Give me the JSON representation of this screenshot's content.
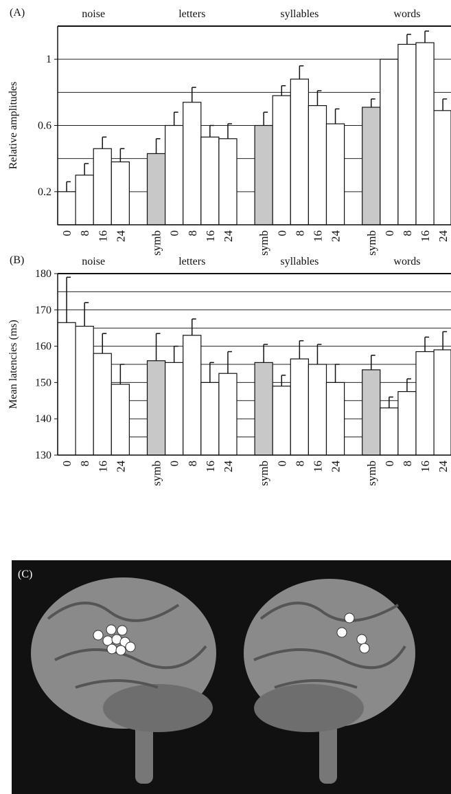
{
  "chart_data": [
    {
      "type": "bar",
      "panel_label": "(A)",
      "y_label": "Relative amplitudes",
      "ylim": [
        0,
        1.2
      ],
      "yticks": [
        0.2,
        0.6,
        1.0
      ],
      "grid_lines": [
        0.2,
        0.4,
        0.6,
        0.8,
        1.0
      ],
      "bar_color": "#ffffff",
      "symb_color": "#c8c8c8",
      "groups": [
        {
          "name": "noise",
          "categories": [
            "0",
            "8",
            "16",
            "24"
          ],
          "values": [
            0.2,
            0.3,
            0.46,
            0.38
          ],
          "errors": [
            0.06,
            0.07,
            0.07,
            0.08
          ]
        },
        {
          "name": "letters",
          "categories": [
            "symb",
            "0",
            "8",
            "16",
            "24"
          ],
          "values": [
            0.43,
            0.6,
            0.74,
            0.53,
            0.52
          ],
          "errors": [
            0.09,
            0.08,
            0.09,
            0.07,
            0.09
          ]
        },
        {
          "name": "syllables",
          "categories": [
            "symb",
            "0",
            "8",
            "16",
            "24"
          ],
          "values": [
            0.6,
            0.78,
            0.88,
            0.72,
            0.61
          ],
          "errors": [
            0.08,
            0.06,
            0.08,
            0.09,
            0.09
          ]
        },
        {
          "name": "words",
          "categories": [
            "symb",
            "0",
            "8",
            "16",
            "24"
          ],
          "values": [
            0.71,
            1.0,
            1.09,
            1.1,
            0.69
          ],
          "errors": [
            0.05,
            null,
            0.06,
            0.07,
            0.07
          ]
        }
      ]
    },
    {
      "type": "bar",
      "panel_label": "(B)",
      "y_label": "Mean latencies (ms)",
      "ylim": [
        130,
        180
      ],
      "yticks": [
        130,
        140,
        150,
        160,
        170,
        180
      ],
      "grid_lines": [
        135,
        140,
        145,
        150,
        155,
        160,
        165,
        170,
        175
      ],
      "bar_color": "#ffffff",
      "symb_color": "#c8c8c8",
      "groups": [
        {
          "name": "noise",
          "categories": [
            "0",
            "8",
            "16",
            "24"
          ],
          "values": [
            166.5,
            165.5,
            158,
            149.5
          ],
          "errors": [
            12.5,
            6.5,
            5.5,
            5.5
          ]
        },
        {
          "name": "letters",
          "categories": [
            "symb",
            "0",
            "8",
            "16",
            "24"
          ],
          "values": [
            156,
            155.5,
            163,
            150,
            152.5
          ],
          "errors": [
            7.5,
            4.5,
            4.5,
            5.5,
            6
          ]
        },
        {
          "name": "syllables",
          "categories": [
            "symb",
            "0",
            "8",
            "16",
            "24"
          ],
          "values": [
            155.5,
            149,
            156.5,
            155,
            150
          ],
          "errors": [
            5,
            3,
            5,
            5.5,
            5
          ]
        },
        {
          "name": "words",
          "categories": [
            "symb",
            "0",
            "8",
            "16",
            "24"
          ],
          "values": [
            153.5,
            143,
            147.5,
            158.5,
            159
          ],
          "errors": [
            4,
            3,
            3.5,
            4,
            5
          ]
        }
      ]
    }
  ],
  "image_panel": {
    "label": "(C)"
  }
}
